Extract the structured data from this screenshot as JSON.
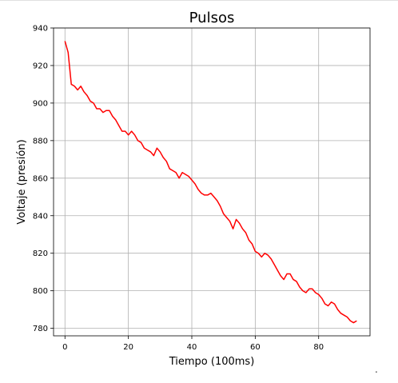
{
  "chart_data": {
    "type": "line",
    "title": "Pulsos",
    "xlabel": "Tiempo (100ms)",
    "ylabel": "Voltaje (presión)",
    "xlim": [
      -3.6,
      96.2
    ],
    "ylim": [
      776,
      940
    ],
    "xticks": [
      0,
      20,
      40,
      60,
      80
    ],
    "yticks": [
      780,
      800,
      820,
      840,
      860,
      880,
      900,
      920,
      940
    ],
    "grid": true,
    "series": [
      {
        "color": "#ff0000",
        "x": [
          0,
          1,
          2,
          3,
          4,
          5,
          6,
          7,
          8,
          9,
          10,
          11,
          12,
          13,
          14,
          15,
          16,
          17,
          18,
          19,
          20,
          21,
          22,
          23,
          24,
          25,
          26,
          27,
          28,
          29,
          30,
          31,
          32,
          33,
          34,
          35,
          36,
          37,
          38,
          39,
          40,
          41,
          42,
          43,
          44,
          45,
          46,
          47,
          48,
          49,
          50,
          51,
          52,
          53,
          54,
          55,
          56,
          57,
          58,
          59,
          60,
          61,
          62,
          63,
          64,
          65,
          66,
          67,
          68,
          69,
          70,
          71,
          72,
          73,
          74,
          75,
          76,
          77,
          78,
          79,
          80,
          81,
          82,
          83,
          84,
          85,
          86,
          87,
          88,
          89,
          90,
          91,
          92
        ],
        "y": [
          933,
          927,
          910,
          909,
          907,
          909,
          906,
          904,
          901,
          900,
          897,
          897,
          895,
          896,
          896,
          893,
          891,
          888,
          885,
          885,
          883,
          885,
          883,
          880,
          879,
          876,
          875,
          874,
          872,
          876,
          874,
          871,
          869,
          865,
          864,
          863,
          860,
          863,
          862,
          861,
          859,
          857,
          854,
          852,
          851,
          851,
          852,
          850,
          848,
          845,
          841,
          839,
          837,
          833,
          838,
          836,
          833,
          831,
          827,
          825,
          821,
          820,
          818,
          820,
          819,
          817,
          814,
          811,
          808,
          806,
          809,
          809,
          806,
          805,
          802,
          800,
          799,
          801,
          801,
          799,
          798,
          796,
          793,
          792,
          794,
          793,
          790,
          788,
          787,
          786,
          784,
          783,
          784
        ]
      }
    ]
  }
}
